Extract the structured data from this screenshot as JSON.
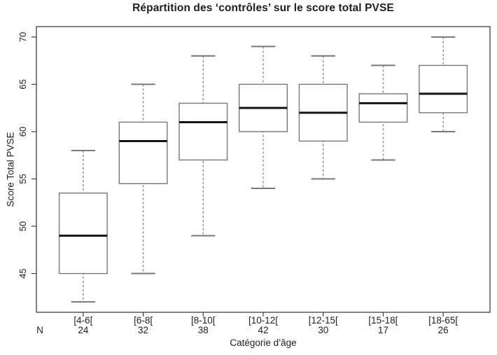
{
  "chart_data": {
    "type": "boxplot",
    "title": "Répartition des ‘contrôles’ sur le score total PVSE",
    "xlabel": "Catégorie d’âge",
    "ylabel": "Score Total PVSE",
    "n_row_label": "N",
    "yticks": [
      45,
      50,
      55,
      60,
      65,
      70
    ],
    "ylim": [
      40.9,
      71.1
    ],
    "grid": "off",
    "categories": [
      "[4-6[",
      "[6-8[",
      "[8-10[",
      "[10-12[",
      "[12-15[",
      "[15-18[",
      "[18-65["
    ],
    "n_values": [
      24,
      32,
      38,
      42,
      30,
      17,
      26
    ],
    "boxes": [
      {
        "category": "[4-6[",
        "n": 24,
        "whisker_low": 42,
        "q1": 45,
        "median": 49,
        "q3": 53.5,
        "whisker_high": 58
      },
      {
        "category": "[6-8[",
        "n": 32,
        "whisker_low": 45,
        "q1": 54.5,
        "median": 59,
        "q3": 61,
        "whisker_high": 65
      },
      {
        "category": "[8-10[",
        "n": 38,
        "whisker_low": 49,
        "q1": 57,
        "median": 61,
        "q3": 63,
        "whisker_high": 68
      },
      {
        "category": "[10-12[",
        "n": 42,
        "whisker_low": 54,
        "q1": 60,
        "median": 62.5,
        "q3": 65,
        "whisker_high": 69
      },
      {
        "category": "[12-15[",
        "n": 30,
        "whisker_low": 55,
        "q1": 59,
        "median": 62,
        "q3": 65,
        "whisker_high": 68
      },
      {
        "category": "[15-18[",
        "n": 17,
        "whisker_low": 57,
        "q1": 61,
        "median": 63,
        "q3": 64,
        "whisker_high": 67
      },
      {
        "category": "[18-65[",
        "n": 26,
        "whisker_low": 60,
        "q1": 62,
        "median": 64,
        "q3": 67,
        "whisker_high": 70
      }
    ],
    "colors": {
      "background": "#ffffff",
      "axis": "#3f3f3f",
      "box_stroke": "#787878",
      "median": "#141414",
      "whisker": "#8a8a8a",
      "text": "#1f1f1f"
    }
  }
}
